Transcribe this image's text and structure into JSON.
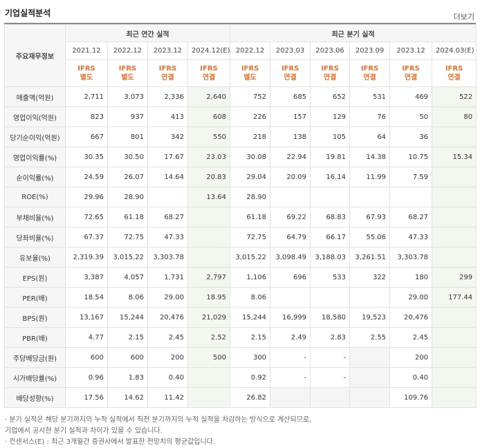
{
  "section_title": "기업실적분석",
  "more_label": "더보기",
  "corner_label": "주요재무정보",
  "group_annual": "최근 연간 실적",
  "group_quarter": "최근 분기 실적",
  "periods": [
    "2021.12",
    "2022.12",
    "2023.12",
    "2024.12(E)",
    "2022.12",
    "2023.03",
    "2023.06",
    "2023.09",
    "2023.12",
    "2024.03(E)"
  ],
  "standards": [
    [
      "IFRS",
      "별도"
    ],
    [
      "IFRS",
      "별도"
    ],
    [
      "IFRS",
      "연결"
    ],
    [
      "IFRS",
      "연결"
    ],
    [
      "IFRS",
      "별도"
    ],
    [
      "IFRS",
      "연결"
    ],
    [
      "IFRS",
      "연결"
    ],
    [
      "IFRS",
      "연결"
    ],
    [
      "IFRS",
      "연결"
    ],
    [
      "IFRS",
      "연결"
    ]
  ],
  "rows": [
    {
      "label": "매출액(억원)",
      "values": [
        "2,711",
        "3,073",
        "2,336",
        "2,640",
        "752",
        "685",
        "652",
        "531",
        "469",
        "522"
      ]
    },
    {
      "label": "영업이익(억원)",
      "values": [
        "823",
        "937",
        "413",
        "608",
        "226",
        "157",
        "129",
        "76",
        "50",
        "80"
      ]
    },
    {
      "label": "당기순이익(억원)",
      "values": [
        "667",
        "801",
        "342",
        "550",
        "218",
        "138",
        "105",
        "64",
        "36",
        ""
      ]
    },
    {
      "label": "영업이익률(%)",
      "values": [
        "30.35",
        "30.50",
        "17.67",
        "23.03",
        "30.08",
        "22.94",
        "19.81",
        "14.38",
        "10.75",
        "15.34"
      ]
    },
    {
      "label": "순이익률(%)",
      "values": [
        "24.59",
        "26.07",
        "14.64",
        "20.83",
        "29.04",
        "20.09",
        "16.14",
        "11.99",
        "7.59",
        ""
      ]
    },
    {
      "label": "ROE(%)",
      "values": [
        "29.96",
        "28.90",
        "",
        "13.64",
        "28.90",
        "",
        "",
        "",
        "",
        ""
      ]
    },
    {
      "label": "부채비율(%)",
      "values": [
        "72.65",
        "61.18",
        "68.27",
        "",
        "61.18",
        "69.22",
        "68.83",
        "67.93",
        "68.27",
        ""
      ]
    },
    {
      "label": "당좌비율(%)",
      "values": [
        "67.37",
        "72.75",
        "47.33",
        "",
        "72.75",
        "64.79",
        "66.17",
        "55.06",
        "47.33",
        ""
      ]
    },
    {
      "label": "유보율(%)",
      "values": [
        "2,319.39",
        "3,015.22",
        "3,303.78",
        "",
        "3,015.22",
        "3,098.49",
        "3,188.03",
        "3,261.51",
        "3,303.78",
        ""
      ]
    },
    {
      "label": "EPS(원)",
      "values": [
        "3,387",
        "4,057",
        "1,731",
        "2,797",
        "1,106",
        "696",
        "533",
        "322",
        "180",
        "299"
      ]
    },
    {
      "label": "PER(배)",
      "values": [
        "18.54",
        "8.06",
        "29.00",
        "18.95",
        "8.06",
        "",
        "",
        "",
        "29.00",
        "177.44"
      ]
    },
    {
      "label": "BPS(원)",
      "values": [
        "13,167",
        "15,244",
        "20,476",
        "21,029",
        "15,244",
        "16,999",
        "18,580",
        "19,523",
        "20,476",
        ""
      ]
    },
    {
      "label": "PBR(배)",
      "values": [
        "4.77",
        "2.15",
        "2.45",
        "2.52",
        "2.15",
        "2.49",
        "2.83",
        "2.55",
        "2.45",
        ""
      ]
    },
    {
      "label": "주당배당금(원)",
      "values": [
        "600",
        "600",
        "200",
        "500",
        "300",
        "-",
        "-",
        "",
        "200",
        ""
      ]
    },
    {
      "label": "시가배당률(%)",
      "values": [
        "0.96",
        "1.83",
        "0.40",
        "",
        "0.92",
        "-",
        "-",
        "",
        "0.40",
        ""
      ]
    },
    {
      "label": "배당성향(%)",
      "values": [
        "17.56",
        "14.62",
        "11.42",
        "",
        "26.82",
        "",
        "",
        "",
        "109.76",
        ""
      ]
    }
  ],
  "notes": [
    "· 분기 실적은 해당 분기까지의 누적 실적에서 직전 분기까지의 누적 실적을 차감하는 방식으로 계산되므로,",
    "  기업에서 공시한 분기 실적과 차이가 있을 수 있습니다.",
    "· 컨센서스(E) : 최근 3개월간 증권사에서 발표한 전망치의 평균값입니다."
  ]
}
